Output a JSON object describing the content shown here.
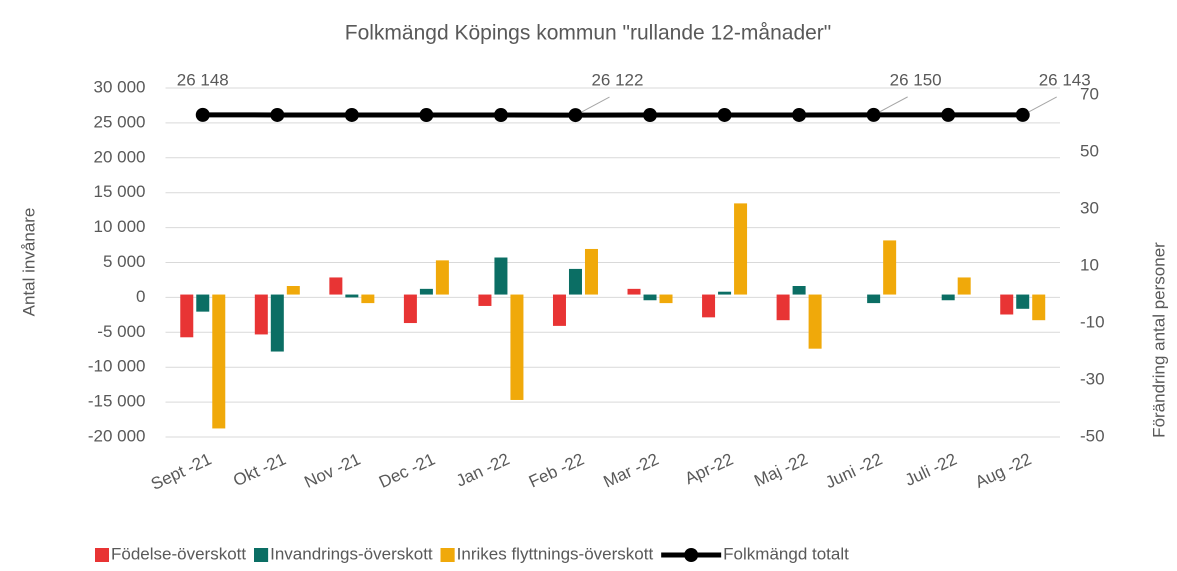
{
  "chart_data": {
    "type": "bar-line",
    "title": "Folkmängd Köpings kommun \"rullande 12-månader\"",
    "ylabel": "Antal invånare",
    "y2label": "Förändring antal personer",
    "categories": [
      "Sept -21",
      "Okt -21",
      "Nov -21",
      "Dec -21",
      "Jan -22",
      "Feb -22",
      "Mar -22",
      "Apr-22",
      "Maj -22",
      "Juni -22",
      "Juli -22",
      "Aug -22"
    ],
    "ylim": [
      -20000,
      30000
    ],
    "yticks": [
      {
        "value": -20000,
        "label": "-20 000"
      },
      {
        "value": -15000,
        "label": "-15 000"
      },
      {
        "value": -10000,
        "label": "-10 000"
      },
      {
        "value": -5000,
        "label": "-5 000"
      },
      0,
      {
        "value": 5000,
        "label": "5 000"
      },
      {
        "value": 10000,
        "label": "10 000"
      },
      {
        "value": 15000,
        "label": "15 000"
      },
      {
        "value": 20000,
        "label": "20 000"
      },
      {
        "value": 25000,
        "label": "25 000"
      },
      {
        "value": 30000,
        "label": "30 000"
      }
    ],
    "y2lim": [
      -50,
      72.5
    ],
    "y2ticks": [
      -50,
      -30,
      -10,
      10,
      30,
      50,
      70
    ],
    "grid": true,
    "legend": "bottom",
    "series": [
      {
        "name": "Födelse-överskott",
        "color": "#e83434",
        "axis": "y2",
        "values": [
          -15,
          -14,
          6,
          -10,
          -4,
          -11,
          2,
          -8,
          -9,
          0,
          0,
          -7
        ]
      },
      {
        "name": "Invandrings-överskott",
        "color": "#0b6e64",
        "axis": "y2",
        "values": [
          -6,
          -20,
          -1,
          2,
          13,
          9,
          -2,
          1,
          3,
          -3,
          -2,
          -5
        ]
      },
      {
        "name": "Inrikes flyttnings-överskott",
        "color": "#f0a90a",
        "axis": "y2",
        "values": [
          -47,
          3,
          -3,
          12,
          -37,
          16,
          -3,
          32,
          -19,
          19,
          6,
          -9
        ]
      },
      {
        "name": "Folkmängd totalt",
        "color": "#000000",
        "type": "line",
        "values": [
          26148,
          26140,
          26135,
          26130,
          26125,
          26122,
          26128,
          26135,
          26140,
          26150,
          26145,
          26143
        ],
        "value_labels": [
          "26 148",
          null,
          null,
          null,
          null,
          "26 122",
          null,
          null,
          null,
          "26 150",
          null,
          "26 143"
        ]
      }
    ]
  }
}
